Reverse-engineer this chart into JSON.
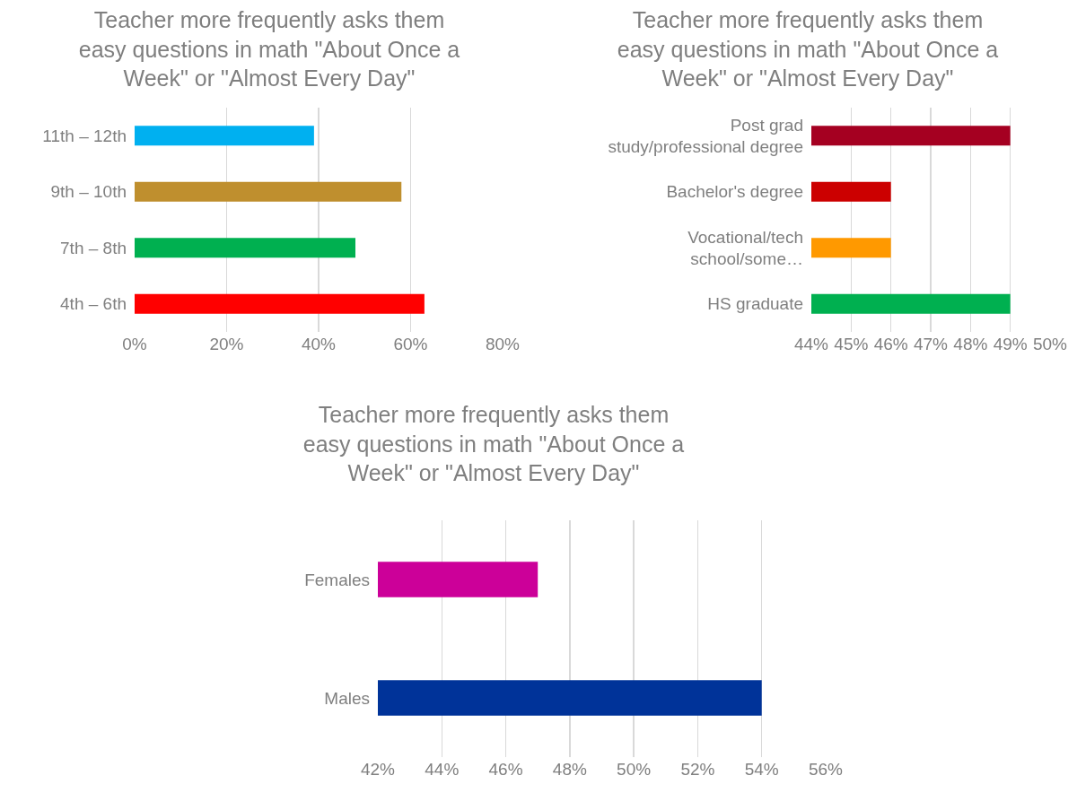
{
  "chart_data": [
    {
      "type": "bar",
      "orientation": "horizontal",
      "title": "Teacher more frequently asks them easy questions in math \"About Once a Week\" or \"Almost Every Day\"",
      "categories": [
        "11th – 12th",
        "9th – 10th",
        "7th – 8th",
        "4th – 6th"
      ],
      "values": [
        39,
        58,
        48,
        63
      ],
      "colors": [
        "#00b0f0",
        "#bf8f2e",
        "#00b050",
        "#ff0000"
      ],
      "xlim": [
        0,
        80
      ],
      "xticks": [
        {
          "value": 0,
          "label": "0%"
        },
        {
          "value": 20,
          "label": "20%"
        },
        {
          "value": 40,
          "label": "40%"
        },
        {
          "value": 60,
          "label": "60%"
        },
        {
          "value": 80,
          "label": "80%"
        }
      ],
      "grid": "x"
    },
    {
      "type": "bar",
      "orientation": "horizontal",
      "title": "Teacher more frequently asks them easy questions in math \"About Once a Week\" or \"Almost Every Day\"",
      "categories": [
        "Post grad study/professional degree",
        "Bachelor's degree",
        "Vocational/tech school/some…",
        "HS graduate"
      ],
      "values": [
        5,
        2,
        2,
        5
      ],
      "base": [
        44,
        44,
        44,
        44
      ],
      "colors": [
        "#a50021",
        "#cc0000",
        "#ff9900",
        "#00b050"
      ],
      "xlim": [
        44,
        50
      ],
      "xticks": [
        {
          "value": 44,
          "label": "44%"
        },
        {
          "value": 45,
          "label": "45%"
        },
        {
          "value": 46,
          "label": "46%"
        },
        {
          "value": 47,
          "label": "47%"
        },
        {
          "value": 48,
          "label": "48%"
        },
        {
          "value": 49,
          "label": "49%"
        },
        {
          "value": 50,
          "label": "50%"
        }
      ],
      "grid": "x"
    },
    {
      "type": "bar",
      "orientation": "horizontal",
      "title": "Teacher more frequently asks them easy questions in math \"About Once a Week\" or \"Almost Every Day\"",
      "categories": [
        "Females",
        "Males"
      ],
      "values": [
        5,
        12
      ],
      "base": [
        42,
        42
      ],
      "colors": [
        "#cc0099",
        "#003399"
      ],
      "xlim": [
        42,
        56
      ],
      "xticks": [
        {
          "value": 42,
          "label": "42%"
        },
        {
          "value": 44,
          "label": "44%"
        },
        {
          "value": 46,
          "label": "46%"
        },
        {
          "value": 48,
          "label": "48%"
        },
        {
          "value": 50,
          "label": "50%"
        },
        {
          "value": 52,
          "label": "52%"
        },
        {
          "value": 54,
          "label": "54%"
        },
        {
          "value": 56,
          "label": "56%"
        }
      ],
      "grid": "x"
    }
  ]
}
